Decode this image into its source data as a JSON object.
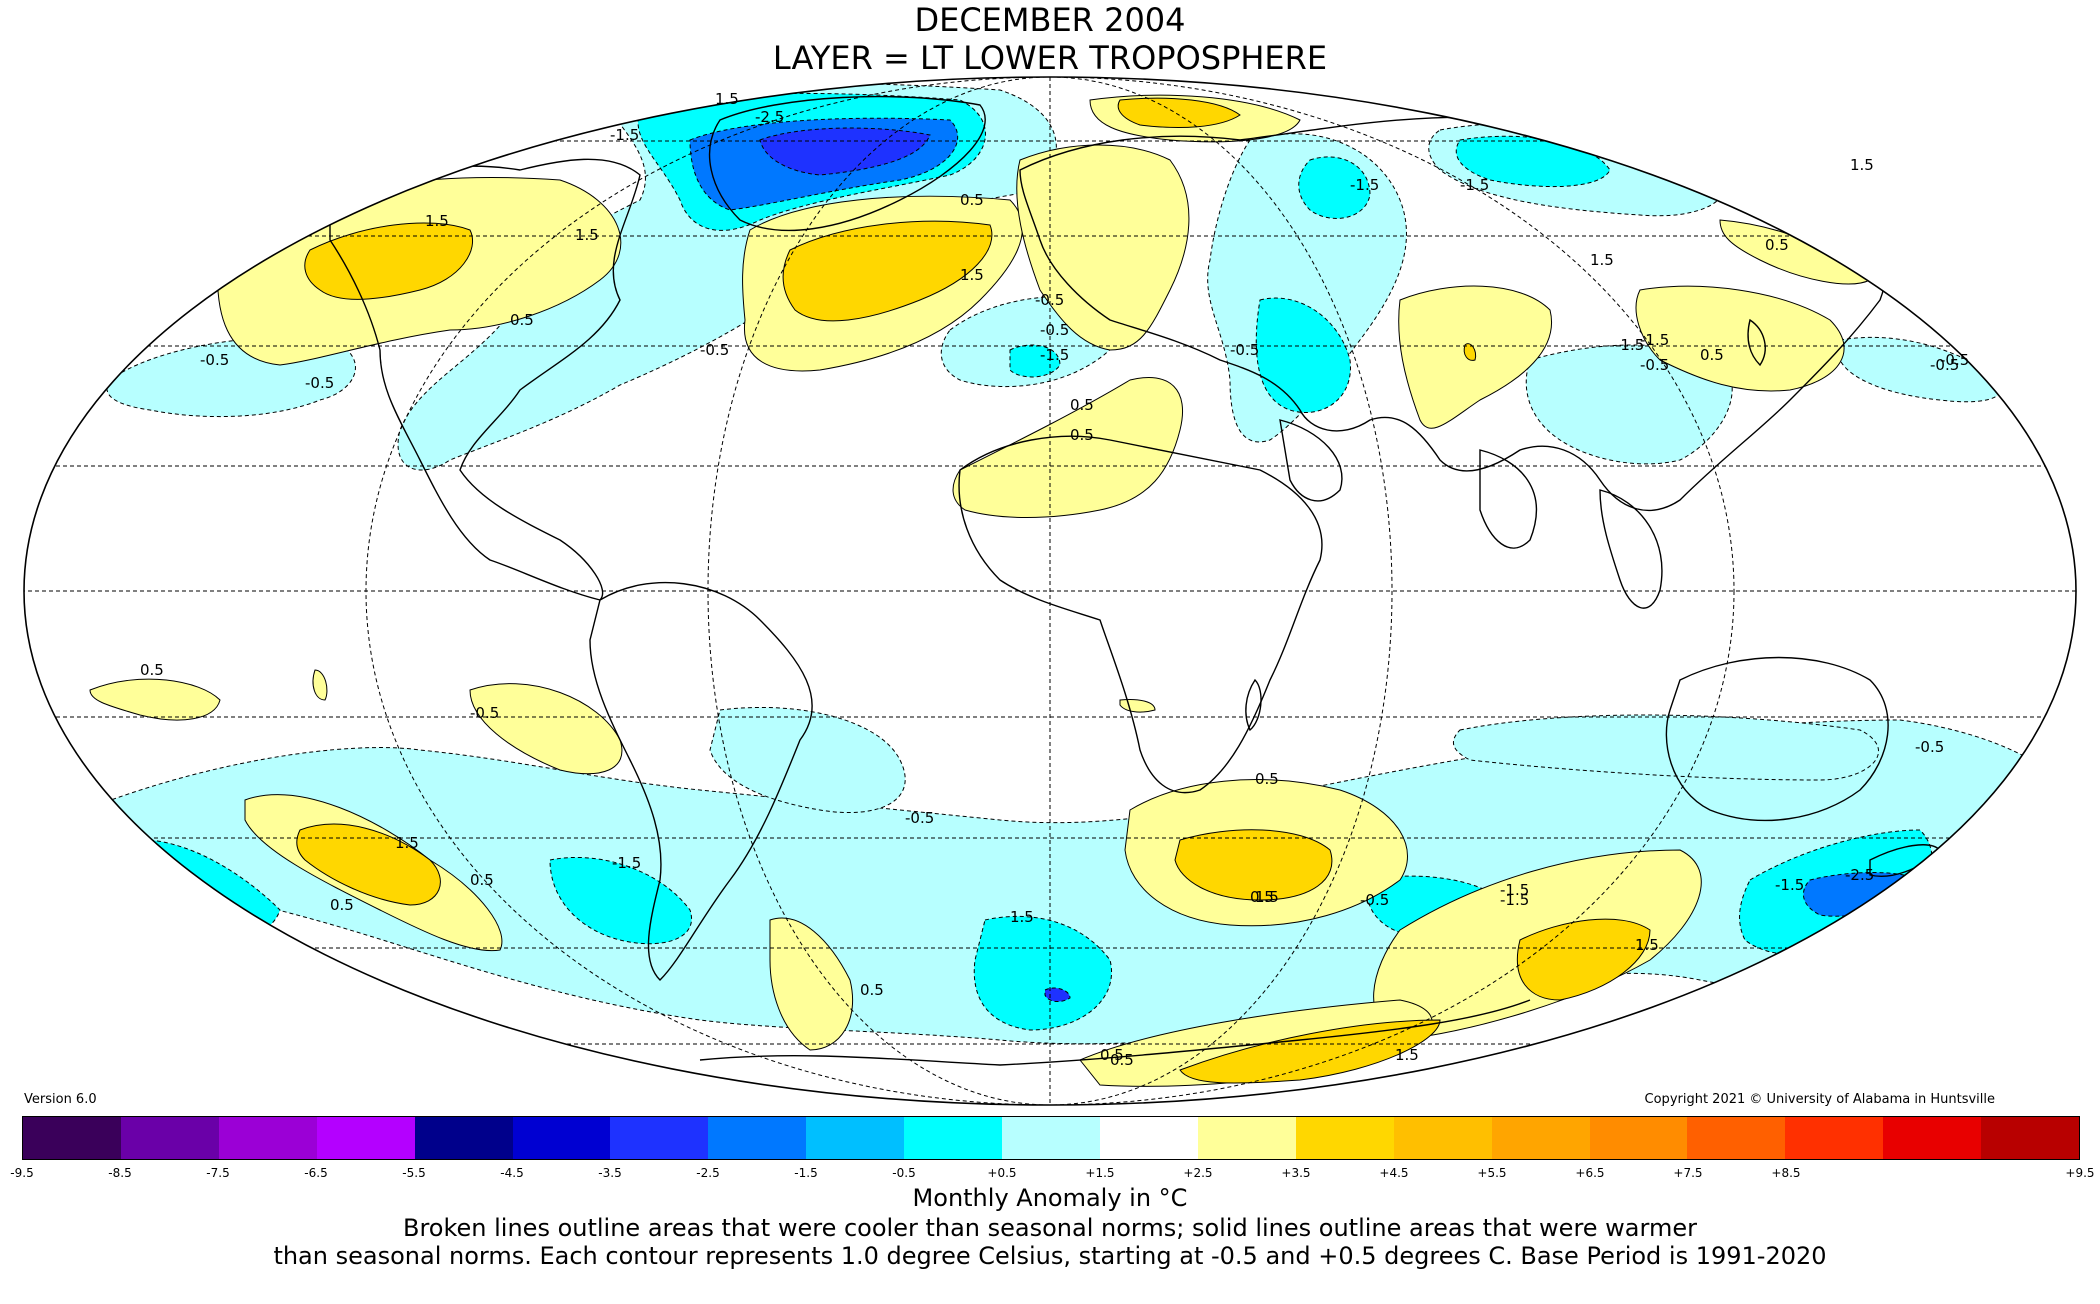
{
  "title": "DECEMBER 2004",
  "subtitle": "LAYER = LT LOWER TROPOSPHERE",
  "version": "Version 6.0",
  "copyright": "Copyright 2021 © University of Alabama in Huntsville",
  "colorbar": {
    "colors": [
      "#3a005a",
      "#6a00a8",
      "#9b00d6",
      "#b400ff",
      "#00008b",
      "#0000d2",
      "#1e32ff",
      "#0078ff",
      "#00bfff",
      "#00ffff",
      "#b7ffff",
      "#ffffff",
      "#ffff99",
      "#ffd700",
      "#ffbf00",
      "#ffa500",
      "#ff8c00",
      "#ff6000",
      "#ff3000",
      "#e80000",
      "#b80000"
    ],
    "tick_labels": [
      "-9.5",
      "-8.5",
      "-7.5",
      "-6.5",
      "-5.5",
      "-4.5",
      "-3.5",
      "-2.5",
      "-1.5",
      "-0.5",
      "+0.5",
      "+1.5",
      "+2.5",
      "+3.5",
      "+4.5",
      "+5.5",
      "+6.5",
      "+7.5",
      "+8.5",
      "+9.5"
    ],
    "units_label": "Monthly Anomaly in °C"
  },
  "note_line1": "Broken lines outline areas that were cooler than seasonal norms; solid lines outline areas that were warmer",
  "note_line2": "than seasonal norms. Each contour represents 1.0 degree Celsius, starting at -0.5 and +0.5 degrees C. Base Period is 1991-2020",
  "contour_labels": [
    "1.5",
    "-2.5",
    "-1.5",
    "1.5",
    "-1.5",
    "1.5",
    "1.5",
    "0.5",
    "1.5",
    "0.5",
    "-0.5",
    "-0.5",
    "-1.5",
    "0.5",
    "-0.5",
    "-0.5",
    "-0.5",
    "0.5",
    "-0.5",
    "0.5",
    "-1.5",
    "-0.5",
    "0.5",
    "-0.5",
    "1.5",
    "-1.5",
    "-1.5",
    "-0.5",
    "0.5",
    "-0.5",
    "-0.5",
    "1.5",
    "-1.5",
    "0.5",
    "0.5",
    "1.5",
    "-1.5",
    "-2.5",
    "0.5",
    "0.5",
    "-0.5",
    "0.5",
    "1.5",
    "0.5",
    "-1.5",
    "-0.5",
    "1.5",
    "-1.5",
    "0.5",
    "1.5"
  ]
}
